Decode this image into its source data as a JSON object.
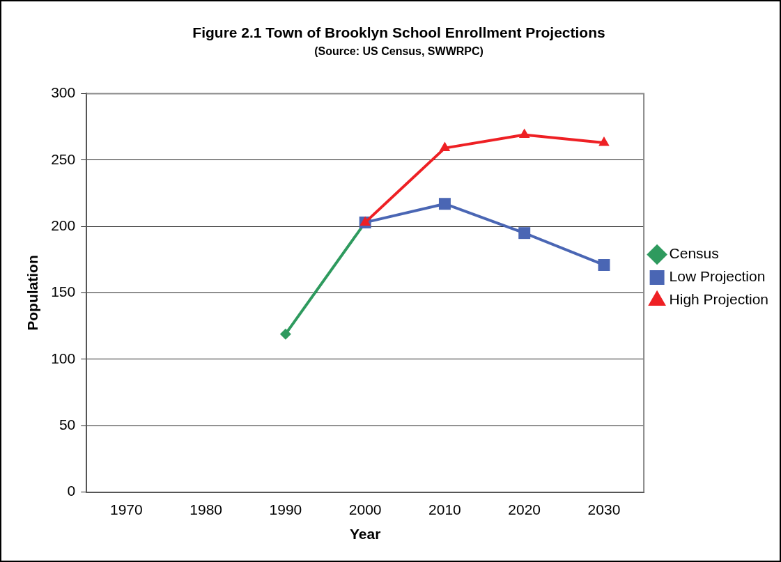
{
  "chart_data": {
    "type": "line",
    "title": "Figure 2.1 Town of Brooklyn School Enrollment Projections",
    "subtitle": "(Source: US Census, SWWRPC)",
    "xlabel": "Year",
    "ylabel": "Population",
    "categories": [
      "1970",
      "1980",
      "1990",
      "2000",
      "2010",
      "2020",
      "2030"
    ],
    "series": [
      {
        "name": "Census",
        "color": "#2e9a5e",
        "marker": "diamond",
        "values": [
          null,
          null,
          119,
          203,
          null,
          null,
          null
        ]
      },
      {
        "name": "Low Projection",
        "color": "#4a66b4",
        "marker": "square",
        "values": [
          null,
          null,
          null,
          203,
          217,
          195,
          171
        ]
      },
      {
        "name": "High Projection",
        "color": "#ee2024",
        "marker": "triangle",
        "values": [
          null,
          null,
          null,
          203,
          259,
          269,
          263
        ]
      }
    ],
    "ylim": [
      0,
      300
    ],
    "yticks": [
      0,
      50,
      100,
      150,
      200,
      250,
      300
    ],
    "grid": "y",
    "legend": "right",
    "line_style": "solid"
  }
}
